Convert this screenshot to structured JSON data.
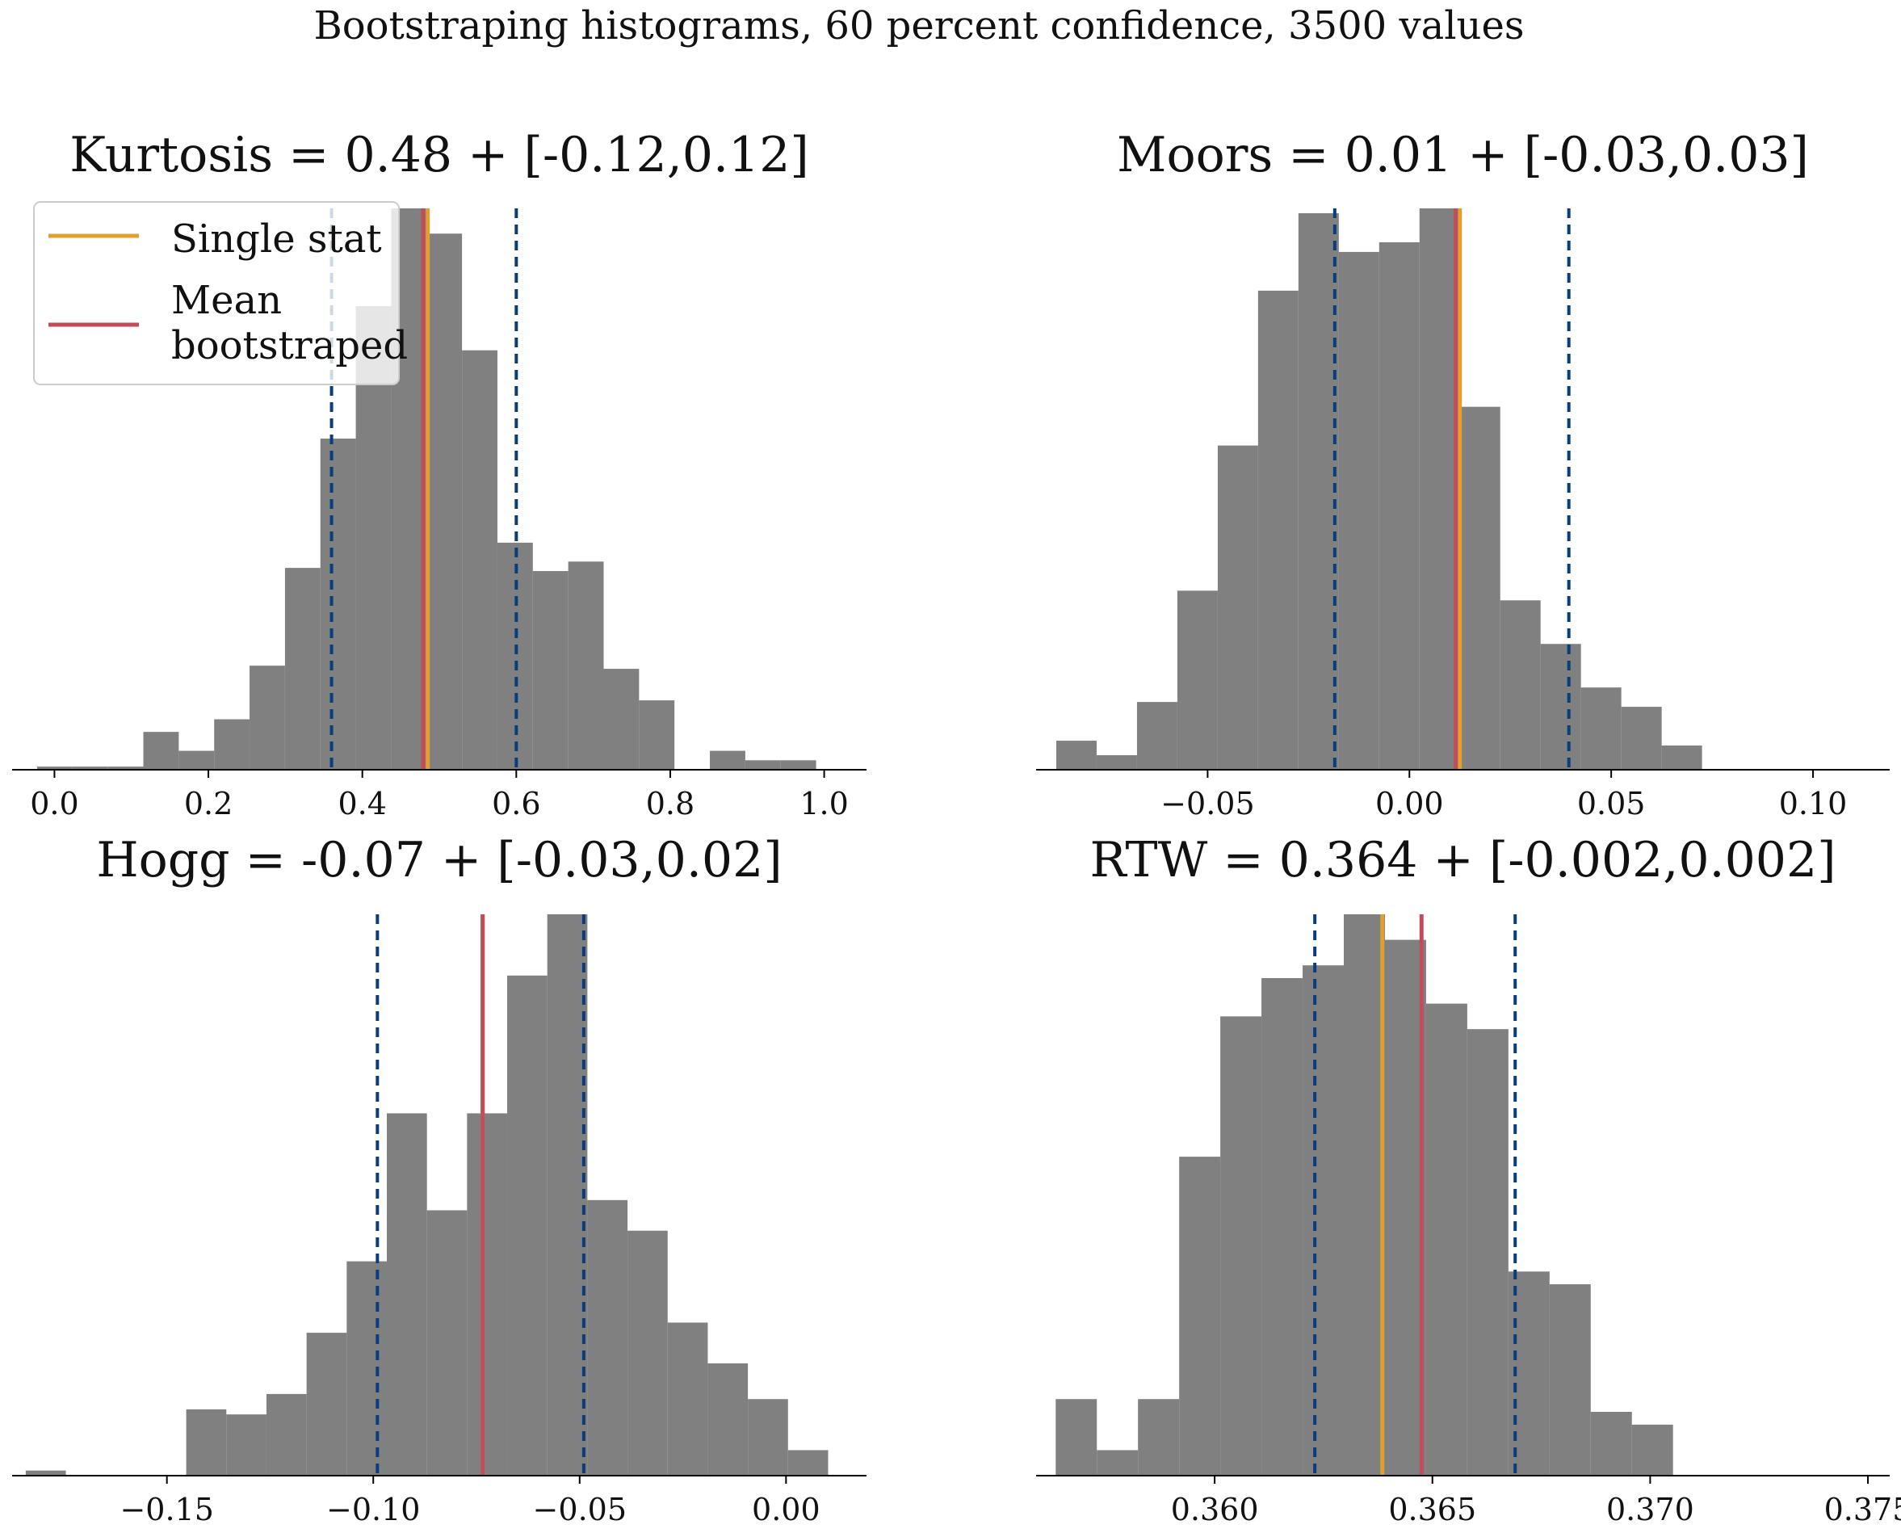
{
  "suptitle": "Bootstraping histograms, 60 percent confidence, 3500 values",
  "colors": {
    "bars": "#808080",
    "single_stat": "#E0A030",
    "mean_bootstrapped": "#C04C5C",
    "ci_bounds": "#0A3D7A",
    "axis": "#000000"
  },
  "legend": {
    "placement": "upper left",
    "items": [
      {
        "label": "Single stat",
        "color": "#E0A030"
      },
      {
        "label_lines": [
          "Mean",
          "bootstraped"
        ],
        "color": "#C04C5C"
      }
    ]
  },
  "chart_data": [
    {
      "type": "histogram",
      "title": "Kurtosis = 0.48 + [-0.12,0.12]",
      "xlim": [
        -0.055,
        1.055
      ],
      "ticks": [
        0.0,
        0.2,
        0.4,
        0.6,
        0.8,
        1.0
      ],
      "tick_labels": [
        "0.0",
        "0.2",
        "0.4",
        "0.6",
        "0.8",
        "1.0"
      ],
      "bin_start": -0.0225,
      "bin_width": 0.046,
      "counts": [
        1,
        1,
        1,
        12,
        6,
        16,
        33,
        64,
        105,
        147,
        178,
        170,
        133,
        72,
        63,
        66,
        32,
        22,
        0,
        6,
        3,
        3
      ],
      "single_stat": 0.485,
      "mean_bootstrapped": 0.479,
      "ci": [
        0.36,
        0.6
      ]
    },
    {
      "type": "histogram",
      "title": "Moors = 0.01 + [-0.03,0.03]",
      "xlim": [
        -0.0925,
        0.119
      ],
      "ticks": [
        -0.05,
        0.0,
        0.05,
        0.1
      ],
      "tick_labels": [
        "−0.05",
        "0.00",
        "0.05",
        "0.10"
      ],
      "bin_start": -0.0875,
      "bin_width": 0.01,
      "counts": [
        6,
        3,
        14,
        37,
        67,
        99,
        115,
        107,
        109,
        116,
        75,
        35,
        26,
        17,
        13,
        5
      ],
      "single_stat": 0.0125,
      "mean_bootstrapped": 0.0115,
      "ci": [
        -0.0185,
        0.0395
      ]
    },
    {
      "type": "histogram",
      "title": "Hogg = -0.07 + [-0.03,0.02]",
      "xlim": [
        -0.1875,
        0.0195
      ],
      "ticks": [
        -0.15,
        -0.1,
        -0.05,
        0.0
      ],
      "tick_labels": [
        "−0.15",
        "−0.10",
        "−0.05",
        "0.00"
      ],
      "bin_start": -0.1842,
      "bin_width": 0.00972,
      "counts": [
        1,
        0,
        0,
        0,
        13,
        12,
        16,
        28,
        42,
        71,
        52,
        71,
        98,
        110,
        54,
        48,
        30,
        22,
        15,
        5
      ],
      "single_stat": -0.0735,
      "mean_bootstrapped": -0.0735,
      "ci": [
        -0.099,
        -0.049
      ]
    },
    {
      "type": "histogram",
      "title": "RTW = 0.364 + [-0.002,0.002]",
      "xlim": [
        0.3559,
        0.3755
      ],
      "ticks": [
        0.36,
        0.365,
        0.37,
        0.375
      ],
      "tick_labels": [
        "0.360",
        "0.365",
        "0.370",
        "0.375"
      ],
      "bin_start": 0.35635,
      "bin_width": 0.000945,
      "counts": [
        6,
        2,
        6,
        25,
        36,
        39,
        40,
        44,
        42,
        37,
        35,
        16,
        15,
        5,
        4,
        0,
        0,
        0,
        0,
        0,
        0,
        1
      ],
      "single_stat": 0.36385,
      "mean_bootstrapped": 0.36475,
      "ci": [
        0.3623,
        0.3669
      ]
    }
  ]
}
